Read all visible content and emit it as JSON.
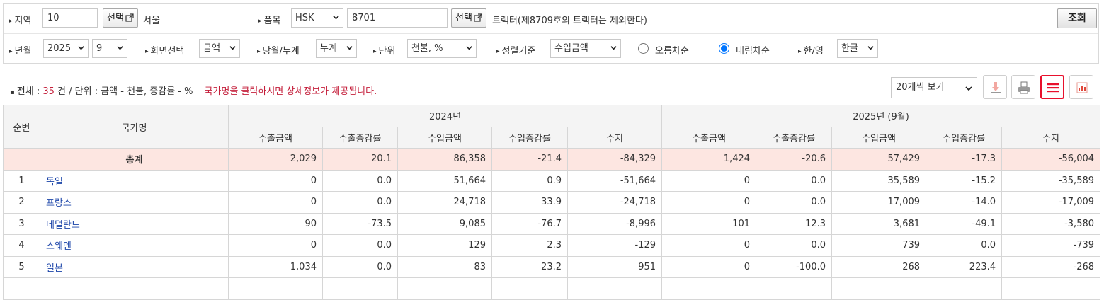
{
  "filters": {
    "region": {
      "label": "지역",
      "code": "10",
      "button": "선택",
      "name": "서울"
    },
    "item": {
      "label": "품목",
      "type": "HSK",
      "code": "8701",
      "button": "선택",
      "description": "트랙터(제8709호의 트랙터는 제외한다)"
    },
    "search_button": "조회",
    "year_month": {
      "label": "년월",
      "year": "2025",
      "month": "9"
    },
    "view": {
      "label": "화면선택",
      "value": "금액"
    },
    "period": {
      "label": "당월/누계",
      "value": "누계"
    },
    "unit": {
      "label": "단위",
      "value": "천불, %"
    },
    "sort": {
      "label": "정렬기준",
      "value": "수입금액",
      "asc": "오름차순",
      "desc": "내림차순",
      "selected": "desc"
    },
    "lang": {
      "label": "한/영",
      "value": "한글"
    }
  },
  "summary": {
    "total_label": "전체",
    "count": "35",
    "unit_suffix": "건 / 단위 : 금액 - 천불, 증감률 - %",
    "notice": "국가명을 클릭하시면 상세정보가 제공됩니다."
  },
  "toolbar": {
    "page_size": "20개씩 보기",
    "download_icon": "download-icon",
    "print_icon": "print-icon",
    "list_icon": "list-icon",
    "chart_icon": "bar-chart-icon",
    "accent": "#e8112d"
  },
  "table": {
    "header": {
      "no": "순번",
      "country": "국가명",
      "group1": "2024년",
      "group2": "2025년 (9월)",
      "cols": [
        "수출금액",
        "수출증감률",
        "수입금액",
        "수입증감률",
        "수지",
        "수출금액",
        "수출증감률",
        "수입금액",
        "수입증감률",
        "수지"
      ]
    },
    "total": {
      "label": "총계",
      "values": [
        "2,029",
        "20.1",
        "86,358",
        "-21.4",
        "-84,329",
        "1,424",
        "-20.6",
        "57,429",
        "-17.3",
        "-56,004"
      ]
    },
    "rows": [
      {
        "no": "1",
        "country": "독일",
        "values": [
          "0",
          "0.0",
          "51,664",
          "0.9",
          "-51,664",
          "0",
          "0.0",
          "35,589",
          "-15.2",
          "-35,589"
        ]
      },
      {
        "no": "2",
        "country": "프랑스",
        "values": [
          "0",
          "0.0",
          "24,718",
          "33.9",
          "-24,718",
          "0",
          "0.0",
          "17,009",
          "-14.0",
          "-17,009"
        ]
      },
      {
        "no": "3",
        "country": "네덜란드",
        "values": [
          "90",
          "-73.5",
          "9,085",
          "-76.7",
          "-8,996",
          "101",
          "12.3",
          "3,681",
          "-49.1",
          "-3,580"
        ]
      },
      {
        "no": "4",
        "country": "스웨덴",
        "values": [
          "0",
          "0.0",
          "129",
          "2.3",
          "-129",
          "0",
          "0.0",
          "739",
          "0.0",
          "-739"
        ]
      },
      {
        "no": "5",
        "country": "일본",
        "values": [
          "1,034",
          "0.0",
          "83",
          "23.2",
          "951",
          "0",
          "-100.0",
          "268",
          "223.4",
          "-268"
        ]
      },
      {
        "no": "",
        "country": "",
        "values": [
          "",
          "",
          "",
          "",
          "",
          "",
          "",
          "",
          "",
          ""
        ]
      }
    ]
  }
}
